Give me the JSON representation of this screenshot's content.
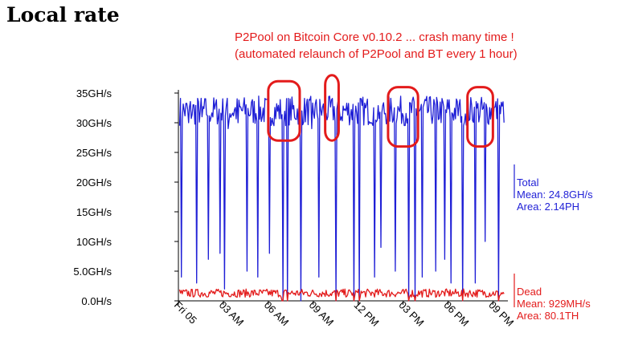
{
  "page_title": "Local rate",
  "annotation": {
    "line1": "P2Pool on Bitcoin Core v0.10.2 ... crash many time !",
    "line2": "(automated relaunch of P2Pool and BT every 1 hour)",
    "color": "#e31b1b"
  },
  "chart_data": {
    "type": "line",
    "title": "Local rate",
    "xlabel": "",
    "ylabel": "",
    "x_unit": "hours",
    "xlim": [
      0,
      22
    ],
    "ylim": [
      0,
      35
    ],
    "y_ticks": [
      {
        "value": 0,
        "label": "0.0H/s"
      },
      {
        "value": 5,
        "label": "5.0GH/s"
      },
      {
        "value": 10,
        "label": "10GH/s"
      },
      {
        "value": 15,
        "label": "15GH/s"
      },
      {
        "value": 20,
        "label": "20GH/s"
      },
      {
        "value": 25,
        "label": "25GH/s"
      },
      {
        "value": 30,
        "label": "30GH/s"
      },
      {
        "value": 35,
        "label": "35GH/s"
      }
    ],
    "x_ticks": [
      {
        "value": 0,
        "label": "Fri 05"
      },
      {
        "value": 3,
        "label": "03 AM"
      },
      {
        "value": 6,
        "label": "06 AM"
      },
      {
        "value": 9,
        "label": "09 AM"
      },
      {
        "value": 12,
        "label": "12 PM"
      },
      {
        "value": 15,
        "label": "03 PM"
      },
      {
        "value": 18,
        "label": "06 PM"
      },
      {
        "value": 21,
        "label": "09 PM"
      }
    ],
    "grid": false,
    "series": [
      {
        "name": "Total",
        "color": "#1f1fd6",
        "mean": "Mean: 24.8GH/s",
        "area": "Area: 2.14PH",
        "baseline": 32,
        "x": [
          0.2,
          0.7,
          1.2,
          1.6,
          2.0,
          2.8,
          3.1,
          3.3,
          4.0,
          4.6,
          5.3,
          5.6,
          6.1,
          7.0,
          7.3,
          8.2,
          8.9,
          9.4,
          9.8,
          10.5,
          10.9,
          11.7,
          12.1,
          13.1,
          13.5,
          14.5,
          15.4,
          15.8,
          16.3,
          17.2,
          17.8,
          18.2,
          19.0,
          19.8,
          20.5,
          21.4,
          21.8
        ],
        "y": [
          4,
          30,
          3,
          31,
          7,
          8,
          2,
          29,
          30,
          5,
          4,
          31,
          8,
          0,
          0,
          0,
          29,
          4,
          30,
          0,
          31,
          0,
          0,
          4,
          9,
          5,
          0,
          0,
          4,
          5,
          7,
          3,
          0,
          3,
          10,
          0,
          0
        ]
      },
      {
        "name": "Dead",
        "color": "#e31b1b",
        "mean": "Mean: 929MH/s",
        "area": "Area: 80.1TH",
        "baseline": 1.3,
        "x": [
          6.9,
          7.0,
          7.3,
          10.5,
          11.7,
          12.1,
          15.4,
          15.8,
          19.0,
          21.4,
          21.8
        ],
        "y": [
          0,
          0,
          0,
          0,
          0,
          0,
          0,
          0,
          0,
          0,
          0
        ]
      }
    ],
    "highlights": [
      {
        "x": [
          6.0,
          8.1
        ],
        "y": [
          27,
          37
        ]
      },
      {
        "x": [
          9.8,
          10.7
        ],
        "y": [
          27,
          38
        ]
      },
      {
        "x": [
          14.0,
          16.0
        ],
        "y": [
          26,
          36
        ]
      },
      {
        "x": [
          19.3,
          21.0
        ],
        "y": [
          26,
          36
        ]
      }
    ]
  }
}
